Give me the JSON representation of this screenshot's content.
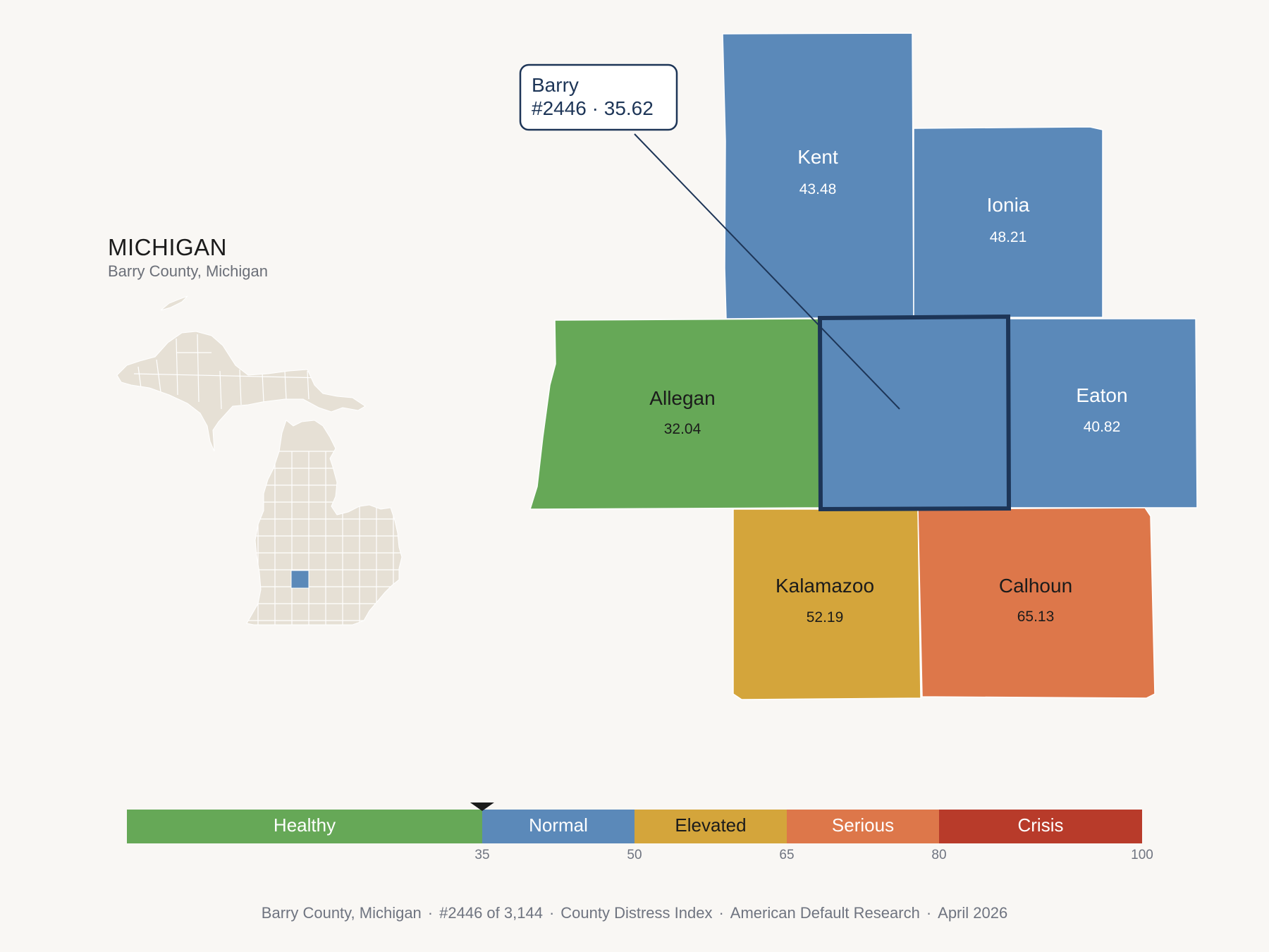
{
  "header": {
    "state_name": "MICHIGAN",
    "county_full": "Barry County, Michigan"
  },
  "inset": {
    "highlight_color": "#5b89b9",
    "fill_color": "#e6e0d5",
    "stroke_color": "#ffffff"
  },
  "map": {
    "counties": [
      {
        "name": "Kent",
        "value": "43.48",
        "color": "#5b89b9",
        "text_color": "#ffffff"
      },
      {
        "name": "Ionia",
        "value": "48.21",
        "color": "#5b89b9",
        "text_color": "#ffffff"
      },
      {
        "name": "Allegan",
        "value": "32.04",
        "color": "#66a857",
        "text_color": "#1b1b1b"
      },
      {
        "name": "Eaton",
        "value": "40.82",
        "color": "#5b89b9",
        "text_color": "#ffffff"
      },
      {
        "name": "Kalamazoo",
        "value": "52.19",
        "color": "#d4a53b",
        "text_color": "#1b1b1b"
      },
      {
        "name": "Calhoun",
        "value": "65.13",
        "color": "#dd774a",
        "text_color": "#1b1b1b"
      }
    ],
    "focus": {
      "name": "Barry",
      "rank_label": "#2446 · 35.62",
      "value": 35.62,
      "color": "#5b89b9",
      "outline_color": "#1d3557"
    }
  },
  "legend": {
    "min": 0,
    "max": 100,
    "marker_value": 35.62,
    "bands": [
      {
        "label": "Healthy",
        "from": 0,
        "to": 35,
        "color": "#66a857",
        "text_color": "#ffffff"
      },
      {
        "label": "Normal",
        "from": 35,
        "to": 50,
        "color": "#5b89b9",
        "text_color": "#ffffff"
      },
      {
        "label": "Elevated",
        "from": 50,
        "to": 65,
        "color": "#d4a53b",
        "text_color": "#1b1b1b"
      },
      {
        "label": "Serious",
        "from": 65,
        "to": 80,
        "color": "#dd774a",
        "text_color": "#ffffff"
      },
      {
        "label": "Crisis",
        "from": 80,
        "to": 100,
        "color": "#b83b2a",
        "text_color": "#ffffff"
      }
    ],
    "ticks": [
      "35",
      "50",
      "65",
      "80",
      "100"
    ]
  },
  "footer": {
    "parts": [
      "Barry County, Michigan",
      "#2446 of 3,144",
      "County Distress Index",
      "American Default Research",
      "April 2026"
    ],
    "separator": "·"
  }
}
